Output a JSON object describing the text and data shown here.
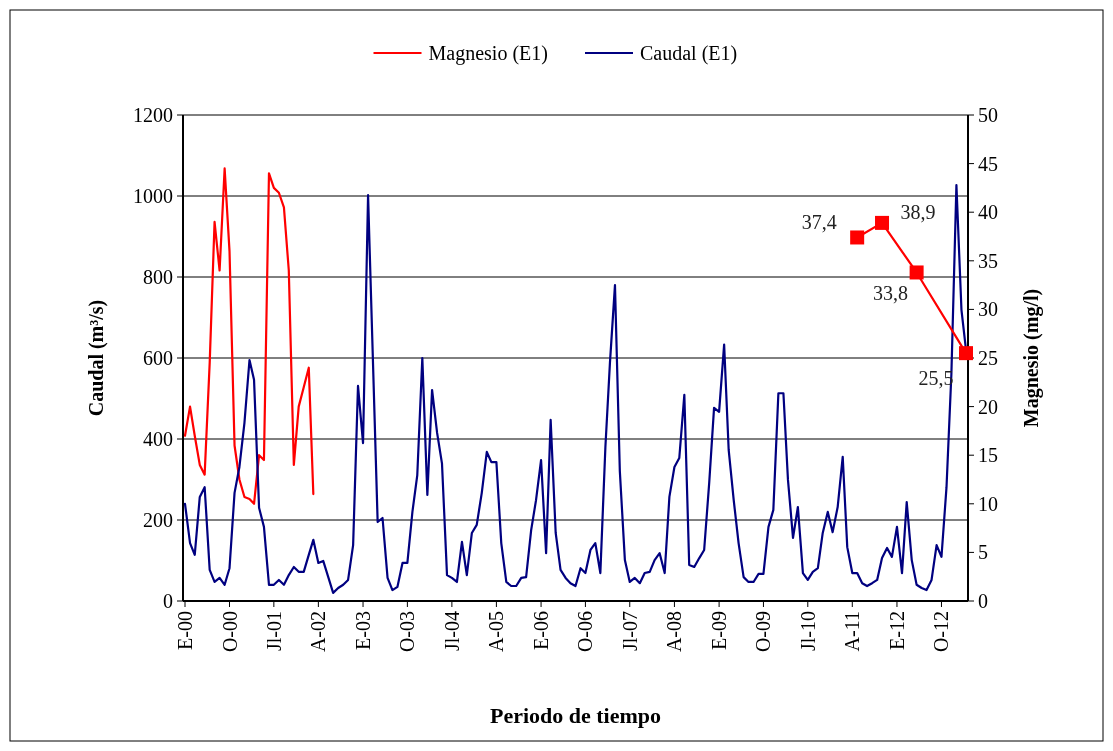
{
  "chart_data": {
    "type": "line",
    "xlabel": "Periodo de tiempo",
    "ylabel": "Caudal (m³/s)",
    "y2label": "Magnesio (mg/l)",
    "legend": "top",
    "grid": "y",
    "x": [
      "2000-01",
      "2000-02",
      "2000-03",
      "2000-04",
      "2000-05",
      "2000-06",
      "2000-07",
      "2000-08",
      "2000-09",
      "2000-10",
      "2000-11",
      "2000-12",
      "2001-01",
      "2001-02",
      "2001-03",
      "2001-04",
      "2001-05",
      "2001-06",
      "2001-07",
      "2001-08",
      "2001-09",
      "2001-10",
      "2001-11",
      "2001-12",
      "2002-01",
      "2002-02",
      "2002-03",
      "2002-04",
      "2002-05",
      "2002-06",
      "2002-07",
      "2002-08",
      "2002-09",
      "2002-10",
      "2002-11",
      "2002-12",
      "2003-01",
      "2003-02",
      "2003-03",
      "2003-04",
      "2003-05",
      "2003-06",
      "2003-07",
      "2003-08",
      "2003-09",
      "2003-10",
      "2003-11",
      "2003-12",
      "2004-01",
      "2004-02",
      "2004-03",
      "2004-04",
      "2004-05",
      "2004-06",
      "2004-07",
      "2004-08",
      "2004-09",
      "2004-10",
      "2004-11",
      "2004-12",
      "2005-01",
      "2005-02",
      "2005-03",
      "2005-04",
      "2005-05",
      "2005-06",
      "2005-07",
      "2005-08",
      "2005-09",
      "2005-10",
      "2005-11",
      "2005-12",
      "2006-01",
      "2006-02",
      "2006-03",
      "2006-04",
      "2006-05",
      "2006-06",
      "2006-07",
      "2006-08",
      "2006-09",
      "2006-10",
      "2006-11",
      "2006-12",
      "2007-01",
      "2007-02",
      "2007-03",
      "2007-04",
      "2007-05",
      "2007-06",
      "2007-07",
      "2007-08",
      "2007-09",
      "2007-10",
      "2007-11",
      "2007-12",
      "2008-01",
      "2008-02",
      "2008-03",
      "2008-04",
      "2008-05",
      "2008-06",
      "2008-07",
      "2008-08",
      "2008-09",
      "2008-10",
      "2008-11",
      "2008-12",
      "2009-01",
      "2009-02",
      "2009-03",
      "2009-04",
      "2009-05",
      "2009-06",
      "2009-07",
      "2009-08",
      "2009-09",
      "2009-10",
      "2009-11",
      "2009-12",
      "2010-01",
      "2010-02",
      "2010-03",
      "2010-04",
      "2010-05",
      "2010-06",
      "2010-07",
      "2010-08",
      "2010-09",
      "2010-10",
      "2010-11",
      "2010-12",
      "2011-01",
      "2011-02",
      "2011-03",
      "2011-04",
      "2011-05",
      "2011-06",
      "2011-07",
      "2011-08",
      "2011-09",
      "2011-10",
      "2011-11",
      "2011-12",
      "2012-01",
      "2012-02",
      "2012-03",
      "2012-04",
      "2012-05",
      "2012-06",
      "2012-07",
      "2012-08",
      "2012-09",
      "2012-10",
      "2012-11",
      "2012-12",
      "2013-01",
      "2013-02",
      "2013-03"
    ],
    "xlim": [
      "2000-01",
      "2013-03"
    ],
    "xticks": [
      {
        "value": "2000-01",
        "label": "E-00"
      },
      {
        "value": "2000-10",
        "label": "O-00"
      },
      {
        "value": "2001-07",
        "label": "Jl-01"
      },
      {
        "value": "2002-04",
        "label": "A-02"
      },
      {
        "value": "2003-01",
        "label": "E-03"
      },
      {
        "value": "2003-10",
        "label": "O-03"
      },
      {
        "value": "2004-07",
        "label": "Jl-04"
      },
      {
        "value": "2005-04",
        "label": "A-05"
      },
      {
        "value": "2006-01",
        "label": "E-06"
      },
      {
        "value": "2006-10",
        "label": "O-06"
      },
      {
        "value": "2007-07",
        "label": "Jl-07"
      },
      {
        "value": "2008-04",
        "label": "A-08"
      },
      {
        "value": "2009-01",
        "label": "E-09"
      },
      {
        "value": "2009-10",
        "label": "O-09"
      },
      {
        "value": "2010-07",
        "label": "Jl-10"
      },
      {
        "value": "2011-04",
        "label": "A-11"
      },
      {
        "value": "2012-01",
        "label": "E-12"
      },
      {
        "value": "2012-10",
        "label": "O-12"
      }
    ],
    "ylim": [
      0,
      1200
    ],
    "yticks": [
      0,
      200,
      400,
      600,
      800,
      1000,
      1200
    ],
    "y2lim": [
      0,
      50
    ],
    "y2ticks": [
      0,
      5,
      10,
      15,
      20,
      25,
      30,
      35,
      40,
      45,
      50
    ],
    "series": [
      {
        "name": "Magnesio (E1)",
        "color": "#ff0000",
        "axis": "y2",
        "x": [
          "2000-01",
          "2000-02",
          "2000-03",
          "2000-04",
          "2000-05",
          "2000-06",
          "2000-07",
          "2000-08",
          "2000-09",
          "2000-10",
          "2000-11",
          "2000-12",
          "2001-01",
          "2001-02",
          "2001-03",
          "2001-04",
          "2001-05",
          "2001-06",
          "2001-07",
          "2001-08",
          "2001-09",
          "2001-10",
          "2001-11",
          "2001-12",
          "2002-01",
          "2002-02",
          "2002-03"
        ],
        "values": [
          17,
          20,
          17,
          14,
          13,
          24.5,
          39,
          34,
          44.5,
          36,
          16,
          12.5,
          10.7,
          10.5,
          10,
          15,
          14.5,
          44,
          42.5,
          42,
          40.5,
          34,
          14,
          20,
          22,
          24,
          11
        ]
      },
      {
        "name": "Caudal (E1)",
        "color": "#000080",
        "values": [
          240,
          143,
          114,
          257,
          281,
          77,
          47,
          57,
          40,
          81,
          267,
          331,
          440,
          595,
          546,
          230,
          183,
          40,
          40,
          52,
          40,
          64,
          84,
          72,
          72,
          114,
          151,
          94,
          99,
          59,
          20,
          32,
          40,
          52,
          138,
          531,
          390,
          1002,
          620,
          195,
          205,
          57,
          27,
          35,
          94,
          94,
          220,
          311,
          600,
          262,
          521,
          415,
          340,
          64,
          57,
          47,
          146,
          64,
          168,
          188,
          267,
          368,
          343,
          343,
          143,
          47,
          37,
          37,
          57,
          59,
          175,
          249,
          348,
          118,
          447,
          168,
          77,
          57,
          44,
          37,
          81,
          69,
          126,
          143,
          69,
          380,
          588,
          780,
          320,
          101,
          47,
          57,
          44,
          69,
          72,
          101,
          118,
          69,
          257,
          331,
          353,
          509,
          89,
          84,
          106,
          126,
          291,
          477,
          467,
          633,
          373,
          249,
          143,
          59,
          47,
          47,
          67,
          67,
          183,
          225,
          513,
          513,
          299,
          156,
          232,
          69,
          52,
          72,
          81,
          168,
          220,
          170,
          232,
          356,
          133,
          69,
          69,
          44,
          37,
          44,
          52,
          106,
          131,
          109,
          183,
          69,
          244,
          101,
          40,
          32,
          27,
          52,
          138,
          109,
          281,
          560,
          1027,
          719,
          620
        ]
      },
      {
        "color": "#ff0000",
        "axis": "y2",
        "marker": "square",
        "x": [
          "2011-05",
          "2011-10",
          "2012-05",
          "2013-03"
        ],
        "values": [
          37.4,
          38.9,
          33.8,
          25.5
        ],
        "value_labels": [
          "37,4",
          "38,9",
          "33,8",
          "25,5"
        ]
      }
    ]
  }
}
